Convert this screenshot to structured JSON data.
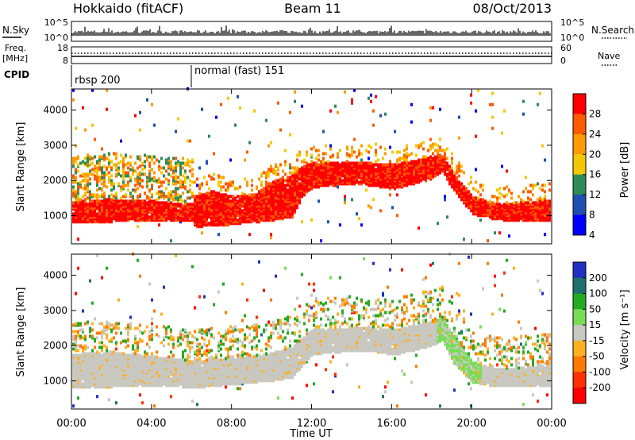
{
  "header": {
    "title": "Hokkaido (fitACF)",
    "beam": "Beam 11",
    "date": "08/Oct/2013"
  },
  "side_labels": {
    "nsky": "N.Sky",
    "nsearch": "N.Search",
    "freq": "Freq.",
    "freq_unit": "[MHz]",
    "nave": "Nave",
    "cpid": "CPID"
  },
  "cpid_modes": [
    "rbsp 200",
    "normal (fast) 151"
  ],
  "noise_ticks": {
    "left": [
      "10^5",
      "10^0"
    ],
    "right": [
      "10^5",
      "10^0"
    ]
  },
  "freq_ticks": {
    "left": [
      "18",
      "8"
    ],
    "right": [
      "60",
      "0"
    ]
  },
  "power_colorbar": {
    "label": "Power [dB]",
    "ticks": [
      "28",
      "24",
      "20",
      "16",
      "12",
      "8",
      "4"
    ],
    "colors": [
      "#ff0000",
      "#ff5a00",
      "#ff9a00",
      "#f4c800",
      "#2e8b57",
      "#1f4fb0",
      "#0000ff"
    ]
  },
  "velocity_colorbar": {
    "label": "Velocity [m s⁻¹]",
    "ticks": [
      "200",
      "100",
      "50",
      "15",
      "-15",
      "-50",
      "-100",
      "-200"
    ],
    "colors": [
      "#2030c0",
      "#1f6f6f",
      "#22aa22",
      "#77dd55",
      "#c8c8c0",
      "#ffb020",
      "#ff7a00",
      "#ff3000",
      "#ff0000"
    ]
  },
  "chart_data": {
    "type": "heatmap",
    "xlabel": "Time UT",
    "ylabel": "Slant Range [km]",
    "x_ticks": [
      "00:00",
      "04:00",
      "08:00",
      "12:00",
      "16:00",
      "20:00",
      "00:00"
    ],
    "y_ticks": [
      "4000",
      "3000",
      "2000",
      "1000"
    ],
    "ylim": [
      200,
      4600
    ],
    "xlim_hours": [
      0,
      24
    ],
    "cpid_change_hour": 6.0,
    "power_band_km": {
      "x_hours": [
        0,
        1,
        2,
        3,
        4,
        5,
        6,
        6.1,
        7,
        8,
        9,
        10,
        11,
        11.5,
        12,
        13,
        14,
        15,
        16,
        17,
        18,
        18.5,
        19,
        20,
        21,
        22,
        23,
        24
      ],
      "lower": [
        750,
        760,
        780,
        800,
        790,
        800,
        820,
        640,
        650,
        700,
        760,
        820,
        900,
        1500,
        1750,
        1800,
        1850,
        1800,
        1700,
        1850,
        2000,
        2200,
        1700,
        1000,
        850,
        800,
        800,
        820
      ],
      "upper": [
        1350,
        1400,
        1420,
        1400,
        1380,
        1320,
        1300,
        1500,
        1650,
        1500,
        1550,
        1900,
        2100,
        2350,
        2450,
        2450,
        2450,
        2450,
        2400,
        2500,
        2650,
        2700,
        2200,
        1500,
        1300,
        1300,
        1350,
        1400
      ]
    },
    "velocity_band_km": {
      "x_hours": [
        0,
        1,
        2,
        3,
        4,
        5,
        6,
        7,
        8,
        9,
        10,
        11,
        12,
        13,
        14,
        15,
        16,
        17,
        18,
        18.5,
        19,
        20,
        21,
        22,
        23,
        24
      ],
      "lower": [
        750,
        760,
        780,
        800,
        790,
        800,
        750,
        800,
        850,
        900,
        950,
        1050,
        1700,
        1750,
        1800,
        1780,
        1700,
        1800,
        1950,
        2100,
        1500,
        900,
        800,
        800,
        800,
        820
      ],
      "upper": [
        1700,
        1750,
        1780,
        1700,
        1650,
        1600,
        1500,
        1550,
        1600,
        1650,
        1750,
        1900,
        2400,
        2420,
        2450,
        2450,
        2400,
        2500,
        2650,
        2750,
        2300,
        1500,
        1300,
        1300,
        1350,
        1400
      ]
    },
    "nsky_level": 0.35,
    "freq_level_mhz": 10.5,
    "nave_level": 31
  }
}
